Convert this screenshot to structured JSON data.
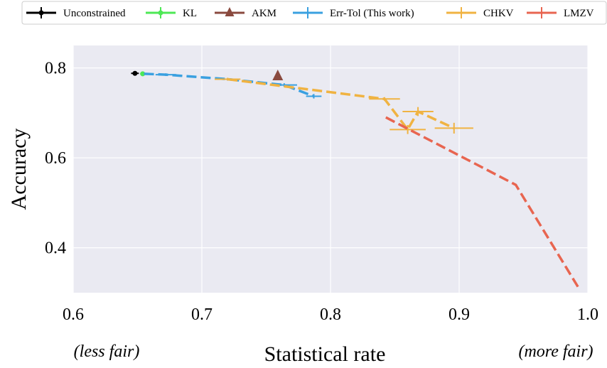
{
  "chart_data": {
    "type": "line",
    "xlabel": "Statistical rate",
    "ylabel": "Accuracy",
    "xlim": [
      0.6,
      1.0
    ],
    "ylim": [
      0.3,
      0.85
    ],
    "xticks": [
      "0.6",
      "0.7",
      "0.8",
      "0.9",
      "1.0"
    ],
    "yticks": [
      "0.4",
      "0.6",
      "0.8"
    ],
    "grid": true,
    "legend_position": "top",
    "annotations": {
      "left": "(less fair)",
      "right": "(more fair)"
    },
    "series": [
      {
        "name": "Unconstrained",
        "color": "#000000",
        "line": "solid",
        "marker": "point",
        "points": [
          {
            "x": 0.648,
            "y": 0.788,
            "xerr": 0.003,
            "yerr": 0.003
          }
        ]
      },
      {
        "name": "KL",
        "color": "#4ee856",
        "line": "solid",
        "marker": "point",
        "points": [
          {
            "x": 0.654,
            "y": 0.787,
            "xerr": 0.002,
            "yerr": 0.003
          }
        ]
      },
      {
        "name": "AKM",
        "color": "#8a4a3f",
        "line": "solid",
        "marker": "triangle",
        "points": [
          {
            "x": 0.759,
            "y": 0.782,
            "xerr": 0.0,
            "yerr": 0.0
          }
        ]
      },
      {
        "name": "Err-Tol (This work)",
        "color": "#3aa0e0",
        "line": "dashed",
        "marker": "errorbar",
        "points": [
          {
            "x": 0.655,
            "y": 0.787,
            "xerr": 0.0,
            "yerr": 0.0
          },
          {
            "x": 0.672,
            "y": 0.785,
            "xerr": 0.008,
            "yerr": 0.003
          },
          {
            "x": 0.72,
            "y": 0.775,
            "xerr": 0.008,
            "yerr": 0.003
          },
          {
            "x": 0.764,
            "y": 0.762,
            "xerr": 0.01,
            "yerr": 0.004
          },
          {
            "x": 0.787,
            "y": 0.737,
            "xerr": 0.006,
            "yerr": 0.005
          }
        ]
      },
      {
        "name": "CHKV",
        "color": "#f0b342",
        "line": "dashed",
        "marker": "errorbar",
        "points": [
          {
            "x": 0.72,
            "y": 0.775,
            "xerr": 0.01,
            "yerr": 0.003
          },
          {
            "x": 0.842,
            "y": 0.731,
            "xerr": 0.012,
            "yerr": 0.004
          },
          {
            "x": 0.86,
            "y": 0.663,
            "xerr": 0.014,
            "yerr": 0.01
          },
          {
            "x": 0.868,
            "y": 0.703,
            "xerr": 0.012,
            "yerr": 0.01
          },
          {
            "x": 0.896,
            "y": 0.666,
            "xerr": 0.015,
            "yerr": 0.012
          }
        ]
      },
      {
        "name": "LMZV",
        "color": "#e86550",
        "line": "dashed",
        "marker": "none",
        "points": [
          {
            "x": 0.843,
            "y": 0.69
          },
          {
            "x": 0.944,
            "y": 0.54
          },
          {
            "x": 0.993,
            "y": 0.31
          }
        ]
      }
    ]
  }
}
